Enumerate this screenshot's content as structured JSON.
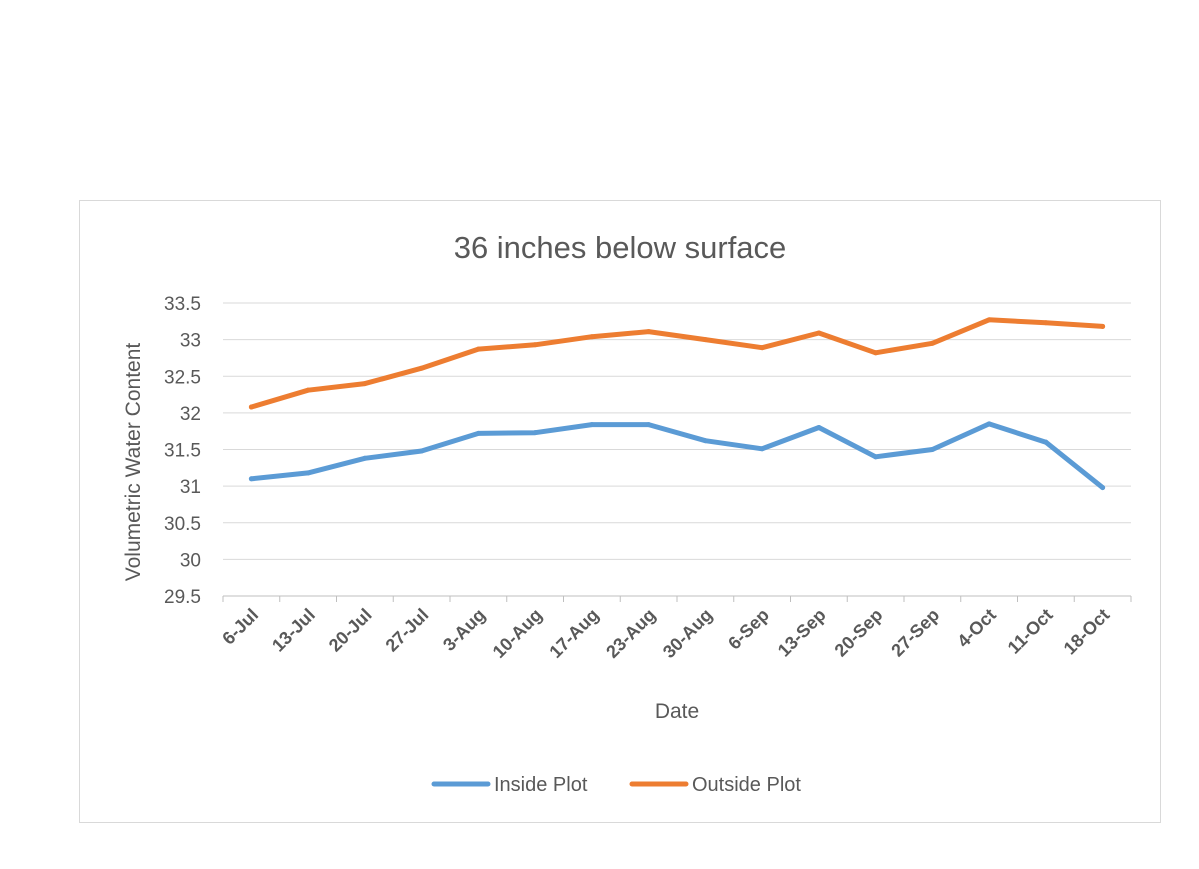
{
  "chart_data": {
    "type": "line",
    "title": "36 inches below surface",
    "xlabel": "Date",
    "ylabel": "Volumetric Water Content",
    "categories": [
      "6-Jul",
      "13-Jul",
      "20-Jul",
      "27-Jul",
      "3-Aug",
      "10-Aug",
      "17-Aug",
      "23-Aug",
      "30-Aug",
      "6-Sep",
      "13-Sep",
      "20-Sep",
      "27-Sep",
      "4-Oct",
      "11-Oct",
      "18-Oct"
    ],
    "ylim": [
      29.5,
      33.5
    ],
    "yticks": [
      "33.5",
      "33",
      "32.5",
      "32",
      "31.5",
      "31",
      "30.5",
      "30",
      "29.5"
    ],
    "grid": true,
    "legend_position": "bottom",
    "series": [
      {
        "name": "Inside Plot",
        "color": "#5b9bd5",
        "values": [
          31.1,
          31.18,
          31.38,
          31.48,
          31.72,
          31.73,
          31.84,
          31.84,
          31.62,
          31.51,
          31.8,
          31.4,
          31.5,
          31.85,
          31.6,
          30.98
        ]
      },
      {
        "name": "Outside Plot",
        "color": "#ed7d31",
        "values": [
          32.08,
          32.31,
          32.4,
          32.61,
          32.87,
          32.93,
          33.04,
          33.11,
          33.0,
          32.89,
          33.09,
          32.82,
          32.95,
          33.27,
          33.23,
          33.18
        ]
      }
    ]
  }
}
